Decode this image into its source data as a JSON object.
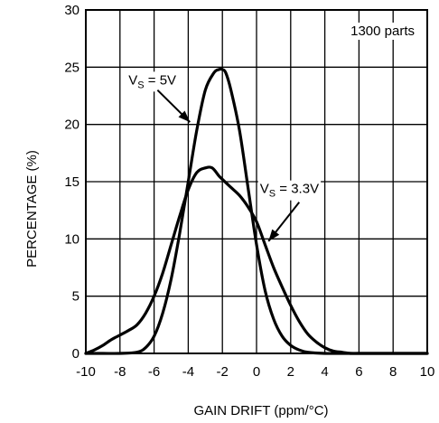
{
  "chart_data": {
    "type": "line",
    "title": "",
    "xlabel": "GAIN DRIFT (ppm/°C)",
    "ylabel": "PERCENTAGE (%)",
    "xlim": [
      -10,
      10
    ],
    "ylim": [
      0,
      30
    ],
    "xticks": [
      -10,
      -8,
      -6,
      -4,
      -2,
      0,
      2,
      4,
      6,
      8,
      10
    ],
    "yticks": [
      0,
      5,
      10,
      15,
      20,
      25,
      30
    ],
    "grid": true,
    "note": "1300 parts",
    "series": [
      {
        "name": "VS = 5V",
        "label_main": "V",
        "label_sub": "S",
        "label_rest": " = 5V",
        "x": [
          -10,
          -9,
          -8,
          -7,
          -6.5,
          -6,
          -5.5,
          -5,
          -4.5,
          -4,
          -3.5,
          -3,
          -2.5,
          -2.2,
          -2,
          -1.8,
          -1.5,
          -1,
          -0.5,
          0,
          0.5,
          1,
          1.5,
          2,
          2.5,
          3,
          4,
          5,
          6,
          10
        ],
        "y": [
          0,
          0,
          0,
          0.1,
          0.5,
          1.5,
          3.5,
          6.5,
          10.5,
          15,
          19.5,
          23,
          24.5,
          24.8,
          24.8,
          24.5,
          23,
          19.5,
          14.5,
          9.5,
          5.5,
          3,
          1.5,
          0.7,
          0.3,
          0.1,
          0,
          0,
          0,
          0
        ]
      },
      {
        "name": "VS = 3.3V",
        "label_main": "V",
        "label_sub": "S",
        "label_rest": " = 3.3V",
        "x": [
          -10,
          -9.5,
          -9,
          -8.5,
          -8,
          -7.5,
          -7,
          -6.5,
          -6,
          -5.5,
          -5,
          -4.5,
          -4,
          -3.5,
          -3,
          -2.6,
          -2.2,
          -2,
          -1.5,
          -1,
          -0.5,
          0,
          0.5,
          1,
          1.5,
          2,
          2.5,
          3,
          3.5,
          4,
          4.5,
          5,
          5.5,
          6,
          7,
          8,
          9,
          10
        ],
        "y": [
          0,
          0.3,
          0.7,
          1.2,
          1.6,
          2,
          2.5,
          3.5,
          5,
          7,
          9.5,
          12,
          14.3,
          15.8,
          16.2,
          16.2,
          15.5,
          15.2,
          14.5,
          13.8,
          12.8,
          11.5,
          9.5,
          7.5,
          5.8,
          4.2,
          2.8,
          1.7,
          1,
          0.5,
          0.2,
          0.1,
          0,
          0,
          0,
          0,
          0,
          0
        ]
      }
    ],
    "annotations": [
      {
        "series": 0,
        "text_x": -7.5,
        "text_y": 23.5,
        "arrow_from": [
          -5.8,
          23
        ],
        "arrow_to": [
          -3.9,
          20.2
        ]
      },
      {
        "series": 1,
        "text_x": 0.2,
        "text_y": 14,
        "arrow_from": [
          2.5,
          13.2
        ],
        "arrow_to": [
          0.7,
          9.8
        ]
      }
    ]
  }
}
